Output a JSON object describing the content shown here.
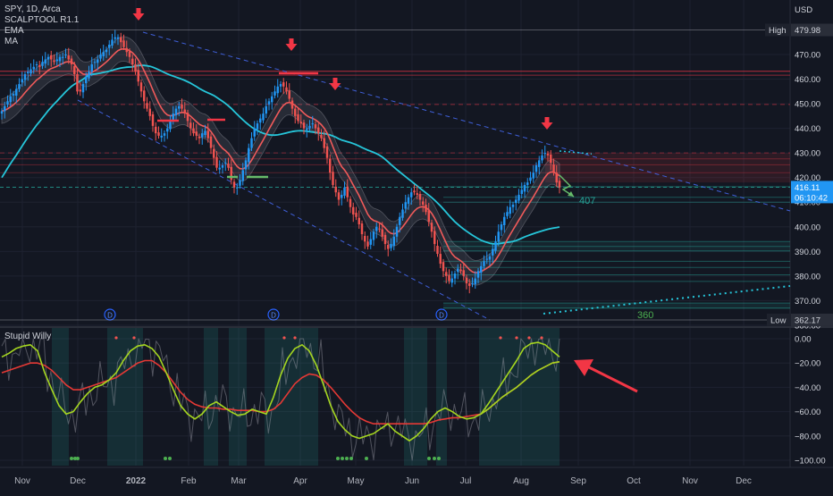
{
  "symbol": {
    "title": "SPY, 1D, Arca",
    "indicators": [
      "SCALPTOOL R1.1",
      "EMA",
      "MA"
    ]
  },
  "oscillator": {
    "title": "Stupid Willy",
    "ticks": [
      "0.00",
      "−20.00",
      "−40.00",
      "−60.00",
      "−80.00",
      "−100.00"
    ]
  },
  "price_axis": {
    "currency": "USD",
    "ticks": [
      "470.00",
      "460.00",
      "450.00",
      "440.00",
      "430.00",
      "420.00",
      "410.00",
      "400.00",
      "390.00",
      "380.00",
      "370.00",
      "360.00"
    ],
    "high": {
      "label": "High",
      "value": "479.98"
    },
    "low": {
      "label": "Low",
      "value": "362.17"
    },
    "last": {
      "price": "416.11",
      "countdown": "06:10:42"
    }
  },
  "x_axis": {
    "labels": [
      "Nov",
      "Dec",
      "2022",
      "Feb",
      "Mar",
      "Apr",
      "May",
      "Jun",
      "Jul",
      "Aug",
      "Sep",
      "Oct",
      "Nov",
      "Dec"
    ]
  },
  "annotations": {
    "target_1": "407",
    "target_2": "360",
    "dividend_marker": "D"
  },
  "colors": {
    "background": "#131722",
    "bull": "#2196f3",
    "bear": "#ef5350",
    "ma": "#26c6da",
    "ema": "#f05a5a",
    "willy_fast": "#a5d620",
    "willy_slow": "#e53935",
    "target": "#26a69a",
    "arrow": "#f23645"
  },
  "chart_data": [
    {
      "type": "candlestick",
      "title": "SPY, 1D, Arca",
      "ylabel": "USD",
      "ylim": [
        355,
        485
      ],
      "x_axis_labels": [
        "Nov",
        "Dec",
        "2022",
        "Feb",
        "Mar",
        "Apr",
        "May",
        "Jun",
        "Jul",
        "Aug",
        "Sep",
        "Oct",
        "Nov",
        "Dec"
      ],
      "series": [
        {
          "name": "SPY",
          "values": [
            447,
            449,
            451,
            453,
            454,
            456,
            458,
            460,
            462,
            463,
            464,
            465,
            466,
            465,
            467,
            468,
            469,
            468,
            467,
            468,
            469,
            469,
            470,
            468,
            466,
            462,
            455,
            455,
            458,
            461,
            463,
            466,
            467,
            468,
            470,
            471,
            472,
            474,
            476,
            477,
            477,
            475,
            473,
            471,
            469,
            466,
            463,
            459,
            455,
            451,
            448,
            445,
            441,
            438,
            437,
            437,
            438,
            440,
            443,
            446,
            448,
            449,
            448,
            446,
            443,
            440,
            438,
            437,
            436,
            438,
            439,
            436,
            432,
            428,
            424,
            424,
            425,
            426,
            424,
            419,
            416,
            416,
            419,
            423,
            427,
            432,
            436,
            440,
            442,
            444,
            446,
            449,
            451,
            453,
            455,
            457,
            458,
            457,
            455,
            452,
            448,
            445,
            443,
            442,
            440,
            440,
            441,
            442,
            440,
            438,
            436,
            432,
            428,
            422,
            417,
            414,
            411,
            413,
            416,
            412,
            408,
            405,
            404,
            401,
            397,
            394,
            392,
            395,
            398,
            400,
            399,
            396,
            393,
            391,
            393,
            396,
            400,
            404,
            407,
            410,
            412,
            414,
            414,
            413,
            411,
            409,
            406,
            402,
            398,
            393,
            389,
            385,
            382,
            380,
            378,
            379,
            381,
            383,
            382,
            380,
            377,
            376,
            377,
            379,
            382,
            384,
            386,
            387,
            388,
            391,
            394,
            398,
            401,
            404,
            406,
            408,
            409,
            411,
            413,
            415,
            417,
            418,
            420,
            422,
            425,
            427,
            429,
            430,
            429,
            426,
            422,
            418,
            416
          ]
        },
        {
          "name": "High",
          "values": [
            479.98
          ]
        },
        {
          "name": "Low",
          "values": [
            362.17
          ]
        }
      ]
    },
    {
      "type": "line",
      "title": "Stupid Willy",
      "ylim": [
        -100,
        0
      ],
      "series": [
        {
          "name": "",
          "values": [
            -15,
            -12,
            -8,
            -6,
            -5,
            -10,
            -28,
            -42,
            -55,
            -62,
            -60,
            -52,
            -45,
            -40,
            -38,
            -34,
            -28,
            -18,
            -10,
            -6,
            -5,
            -8,
            -15,
            -28,
            -42,
            -55,
            -62,
            -66,
            -62,
            -55,
            -52,
            -56,
            -60,
            -63,
            -62,
            -58,
            -60,
            -62,
            -48,
            -30,
            -16,
            -8,
            -5,
            -10,
            -22,
            -38,
            -55,
            -68,
            -75,
            -80,
            -82,
            -80,
            -78,
            -74,
            -70,
            -76,
            -80,
            -84,
            -80,
            -74,
            -66,
            -60,
            -57,
            -60,
            -64,
            -66,
            -65,
            -62,
            -54,
            -45,
            -36,
            -27,
            -18,
            -8,
            -4,
            -3,
            -5,
            -10,
            -15
          ]
        },
        {
          "name": "",
          "values": [
            -28,
            -26,
            -24,
            -22,
            -20,
            -20,
            -22,
            -26,
            -32,
            -38,
            -42,
            -42,
            -40,
            -38,
            -36,
            -34,
            -32,
            -28,
            -24,
            -20,
            -18,
            -18,
            -22,
            -28,
            -36,
            -44,
            -50,
            -54,
            -56,
            -57,
            -57,
            -58,
            -58,
            -59,
            -59,
            -59,
            -60,
            -60,
            -58,
            -53,
            -45,
            -37,
            -32,
            -29,
            -30,
            -34,
            -40,
            -47,
            -54,
            -60,
            -65,
            -68,
            -70,
            -70,
            -70,
            -70,
            -70,
            -70,
            -70,
            -70,
            -69,
            -67,
            -66,
            -65,
            -65,
            -64,
            -63,
            -62,
            -58,
            -53,
            -48,
            -44,
            -40,
            -35,
            -30,
            -26,
            -23,
            -20,
            -19
          ]
        }
      ]
    }
  ]
}
